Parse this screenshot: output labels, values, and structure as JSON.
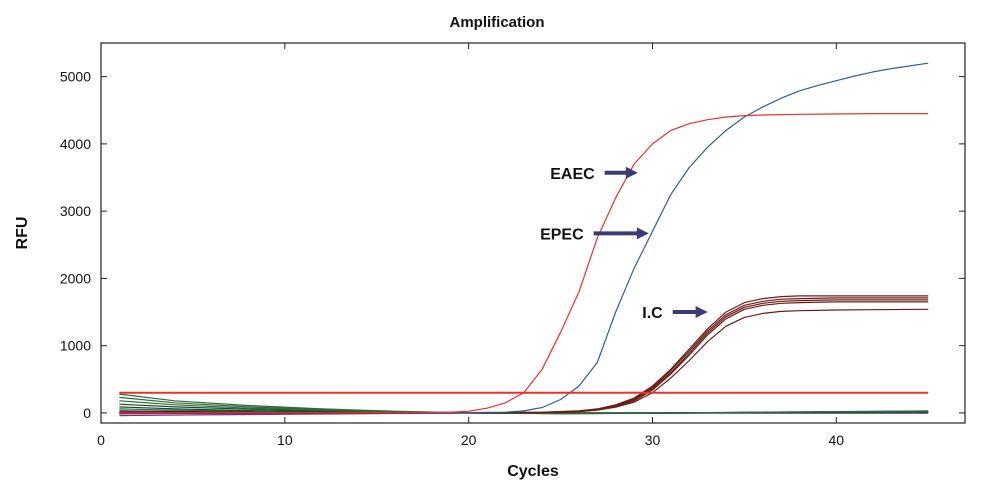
{
  "chart_data": {
    "type": "line",
    "title": "Amplification",
    "xlabel": "Cycles",
    "ylabel": "RFU",
    "xlim": [
      0,
      47
    ],
    "ylim": [
      -150,
      5500
    ],
    "x_ticks": [
      0,
      10,
      20,
      30,
      40
    ],
    "y_ticks": [
      0,
      1000,
      2000,
      3000,
      4000,
      5000
    ],
    "threshold": {
      "value": 300,
      "color": "#e8312a"
    },
    "annotations": [
      {
        "label": "EAEC",
        "arrow_from": [
          27.4,
          3570
        ],
        "arrow_to": [
          29.2,
          3570
        ],
        "color": "#3c3a74"
      },
      {
        "label": "EPEC",
        "arrow_from": [
          26.8,
          2670
        ],
        "arrow_to": [
          29.8,
          2670
        ],
        "color": "#3c3a74"
      },
      {
        "label": "I.C",
        "arrow_from": [
          31.1,
          1500
        ],
        "arrow_to": [
          33.0,
          1500
        ],
        "color": "#3c3a74"
      }
    ],
    "series": [
      {
        "color": "#e8312a",
        "x": [
          1,
          15,
          19,
          20,
          21,
          22,
          23,
          24,
          25,
          26,
          27,
          28,
          29,
          30,
          31,
          32,
          33,
          34,
          35,
          36,
          38,
          40,
          42,
          45
        ],
        "y": [
          0,
          0,
          10,
          25,
          70,
          150,
          300,
          650,
          1200,
          1800,
          2600,
          3200,
          3700,
          4000,
          4200,
          4300,
          4360,
          4400,
          4420,
          4430,
          4440,
          4445,
          4450,
          4450
        ]
      },
      {
        "color": "#2f5f97",
        "x": [
          1,
          18,
          22,
          23,
          24,
          25,
          26,
          27,
          28,
          29,
          30,
          31,
          32,
          33,
          34,
          35,
          36,
          37,
          38,
          39,
          40,
          41,
          42,
          43,
          44,
          45
        ],
        "y": [
          0,
          0,
          10,
          30,
          80,
          200,
          400,
          750,
          1500,
          2150,
          2700,
          3250,
          3650,
          3950,
          4200,
          4400,
          4550,
          4680,
          4790,
          4870,
          4940,
          5010,
          5070,
          5120,
          5160,
          5200
        ]
      },
      {
        "color": "#6b1c18",
        "x": [
          1,
          20,
          24,
          26,
          27,
          28,
          29,
          30,
          31,
          32,
          33,
          34,
          35,
          36,
          37,
          38,
          40,
          42,
          45
        ],
        "y": [
          10,
          0,
          10,
          30,
          60,
          120,
          220,
          400,
          650,
          950,
          1250,
          1500,
          1640,
          1700,
          1730,
          1740,
          1740,
          1740,
          1740
        ]
      },
      {
        "color": "#6b1c18",
        "x": [
          1,
          20,
          24,
          26,
          27,
          28,
          29,
          30,
          31,
          32,
          33,
          34,
          35,
          36,
          37,
          38,
          40,
          42,
          45
        ],
        "y": [
          5,
          0,
          8,
          28,
          55,
          110,
          210,
          380,
          630,
          920,
          1220,
          1460,
          1600,
          1660,
          1690,
          1700,
          1710,
          1710,
          1710
        ]
      },
      {
        "color": "#6b1c18",
        "x": [
          1,
          20,
          24,
          26,
          27,
          28,
          29,
          30,
          31,
          32,
          33,
          34,
          35,
          36,
          37,
          38,
          40,
          42,
          45
        ],
        "y": [
          0,
          0,
          8,
          25,
          50,
          100,
          190,
          360,
          600,
          890,
          1190,
          1430,
          1570,
          1630,
          1660,
          1670,
          1680,
          1680,
          1680
        ]
      },
      {
        "color": "#6b1c18",
        "x": [
          1,
          20,
          24,
          26,
          27,
          28,
          29,
          30,
          31,
          32,
          33,
          34,
          35,
          36,
          37,
          38,
          40,
          42,
          45
        ],
        "y": [
          -5,
          0,
          5,
          22,
          45,
          95,
          180,
          340,
          580,
          860,
          1160,
          1400,
          1540,
          1600,
          1630,
          1640,
          1650,
          1650,
          1650
        ]
      },
      {
        "color": "#6b1c18",
        "x": [
          1,
          20,
          24,
          26,
          27,
          28,
          29,
          30,
          31,
          32,
          33,
          34,
          35,
          36,
          37,
          38,
          40,
          42,
          45
        ],
        "y": [
          -10,
          0,
          5,
          20,
          40,
          85,
          160,
          300,
          520,
          780,
          1060,
          1290,
          1420,
          1480,
          1510,
          1520,
          1530,
          1535,
          1540
        ]
      },
      {
        "color": "#2f6b3a",
        "x": [
          1,
          4,
          8,
          12,
          16,
          20,
          25,
          30,
          35,
          40,
          45
        ],
        "y": [
          280,
          180,
          110,
          60,
          25,
          0,
          -10,
          -5,
          10,
          20,
          30
        ]
      },
      {
        "color": "#2f6b3a",
        "x": [
          1,
          4,
          8,
          12,
          16,
          20,
          25,
          30,
          35,
          40,
          45
        ],
        "y": [
          230,
          150,
          90,
          50,
          20,
          0,
          -12,
          -6,
          8,
          18,
          25
        ]
      },
      {
        "color": "#2f6b3a",
        "x": [
          1,
          4,
          8,
          12,
          16,
          20,
          25,
          30,
          35,
          40,
          45
        ],
        "y": [
          180,
          120,
          70,
          40,
          15,
          0,
          -10,
          -5,
          5,
          15,
          20
        ]
      },
      {
        "color": "#1d4a2a",
        "x": [
          1,
          4,
          8,
          12,
          16,
          20,
          25,
          30,
          35,
          40,
          45
        ],
        "y": [
          130,
          90,
          55,
          30,
          10,
          0,
          -8,
          -4,
          5,
          12,
          15
        ]
      },
      {
        "color": "#1d4a2a",
        "x": [
          1,
          4,
          8,
          12,
          16,
          20,
          25,
          30,
          35,
          40,
          45
        ],
        "y": [
          90,
          60,
          35,
          20,
          8,
          0,
          -6,
          -3,
          4,
          10,
          12
        ]
      },
      {
        "color": "#2f6b3a",
        "x": [
          1,
          4,
          8,
          12,
          16,
          20,
          25,
          30,
          35,
          40,
          45
        ],
        "y": [
          60,
          40,
          25,
          15,
          5,
          0,
          -5,
          -2,
          3,
          8,
          10
        ]
      },
      {
        "color": "#1a1f5a",
        "x": [
          1,
          5,
          10,
          15,
          20,
          25,
          30,
          35,
          40,
          45
        ],
        "y": [
          30,
          20,
          12,
          6,
          0,
          -5,
          -3,
          2,
          5,
          8
        ]
      },
      {
        "color": "#1a1f5a",
        "x": [
          1,
          5,
          10,
          15,
          20,
          25,
          30,
          35,
          40,
          45
        ],
        "y": [
          -10,
          -6,
          -3,
          0,
          0,
          -2,
          0,
          2,
          4,
          5
        ]
      },
      {
        "color": "#7a2a8a",
        "x": [
          1,
          5,
          10,
          15,
          20,
          25,
          30,
          35,
          40,
          45
        ],
        "y": [
          -40,
          -30,
          -20,
          -10,
          -5,
          -5,
          -5,
          -5,
          -5,
          -5
        ]
      },
      {
        "color": "#111111",
        "x": [
          1,
          5,
          10,
          15,
          20,
          25,
          30,
          35,
          40,
          45
        ],
        "y": [
          0,
          0,
          0,
          0,
          0,
          0,
          0,
          2,
          3,
          5
        ]
      }
    ]
  }
}
